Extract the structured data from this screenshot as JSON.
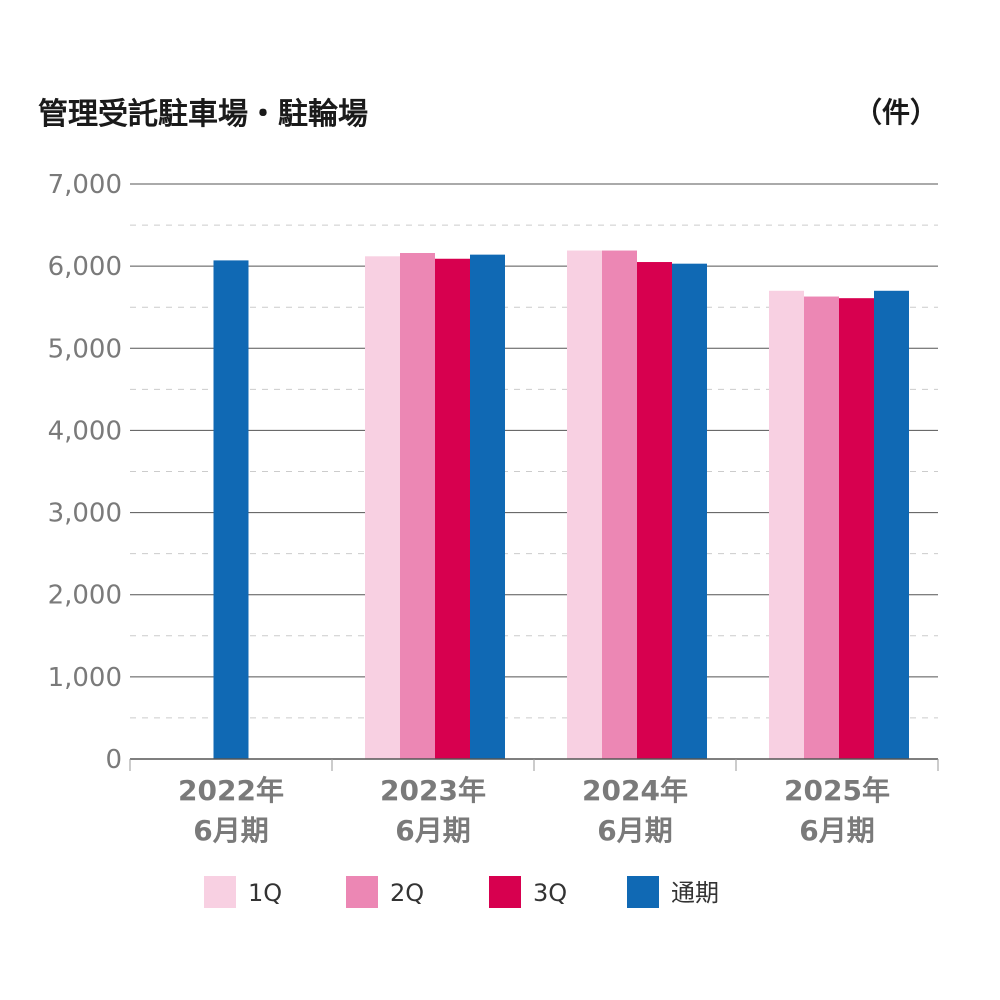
{
  "chart_data": {
    "type": "bar",
    "title": "管理受託駐車場・駐輪場",
    "unit": "（件）",
    "ylim": [
      0,
      7000
    ],
    "y_ticks": [
      "0",
      "1,000",
      "2,000",
      "3,000",
      "4,000",
      "5,000",
      "6,000",
      "7,000"
    ],
    "grid": true,
    "legend_position": "bottom",
    "categories": [
      {
        "line1": "2022年",
        "line2": "6月期"
      },
      {
        "line1": "2023年",
        "line2": "6月期"
      },
      {
        "line1": "2024年",
        "line2": "6月期"
      },
      {
        "line1": "2025年",
        "line2": "6月期"
      }
    ],
    "series": [
      {
        "name": "1Q",
        "color": "#f8d0e2",
        "values": [
          null,
          6120,
          6190,
          5700
        ]
      },
      {
        "name": "2Q",
        "color": "#ec87b4",
        "values": [
          null,
          6160,
          6190,
          5630
        ]
      },
      {
        "name": "3Q",
        "color": "#d7004f",
        "values": [
          null,
          6090,
          6050,
          5610
        ]
      },
      {
        "name": "通期",
        "color": "#1069b4",
        "values": [
          6070,
          6140,
          6030,
          5700
        ]
      }
    ]
  }
}
